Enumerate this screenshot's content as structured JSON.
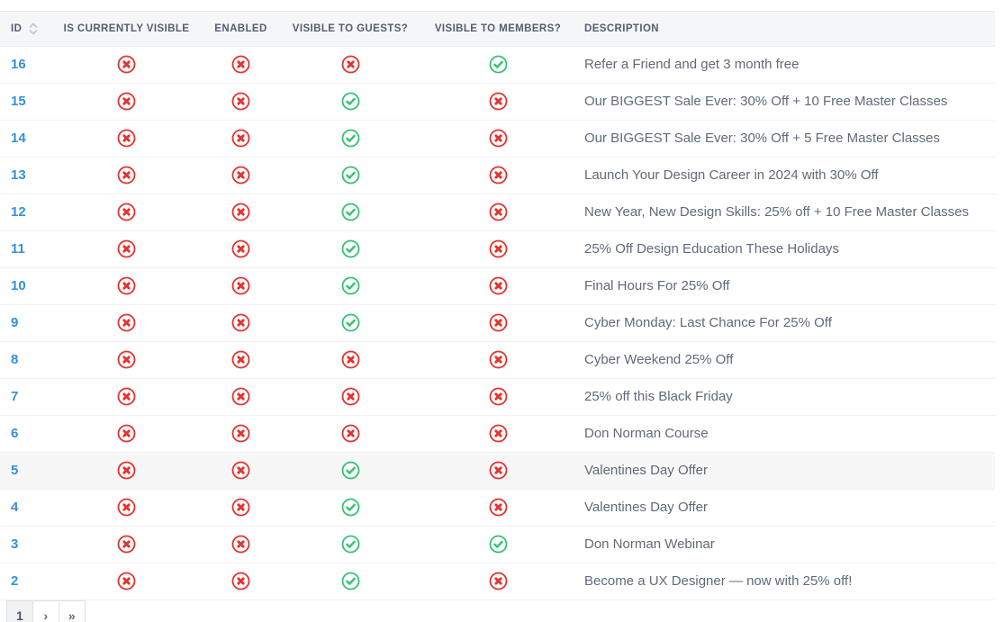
{
  "colors": {
    "red": "#e3342f",
    "green": "#38c172",
    "link_blue": "#3490dc",
    "header_bg": "#f5f6f8",
    "header_text": "#545e70",
    "body_text": "#606a79",
    "row_border": "#eff1f3",
    "highlight_row_bg": "#f7f7f8"
  },
  "table": {
    "columns": [
      {
        "label": "ID",
        "sortable": true
      },
      {
        "label": "IS CURRENTLY VISIBLE"
      },
      {
        "label": "ENABLED"
      },
      {
        "label": "VISIBLE TO GUESTS?"
      },
      {
        "label": "VISIBLE TO MEMBERS?"
      },
      {
        "label": "DESCRIPTION"
      }
    ],
    "status_keys": [
      "is_currently_visible",
      "enabled",
      "visible_to_guests",
      "visible_to_members"
    ],
    "rows": [
      {
        "id": "16",
        "is_currently_visible": false,
        "enabled": false,
        "visible_to_guests": false,
        "visible_to_members": true,
        "description": "Refer a Friend and get 3 month free",
        "highlighted": false
      },
      {
        "id": "15",
        "is_currently_visible": false,
        "enabled": false,
        "visible_to_guests": true,
        "visible_to_members": false,
        "description": "Our BIGGEST Sale Ever: 30% Off + 10 Free Master Classes",
        "highlighted": false
      },
      {
        "id": "14",
        "is_currently_visible": false,
        "enabled": false,
        "visible_to_guests": true,
        "visible_to_members": false,
        "description": "Our BIGGEST Sale Ever: 30% Off + 5 Free Master Classes",
        "highlighted": false
      },
      {
        "id": "13",
        "is_currently_visible": false,
        "enabled": false,
        "visible_to_guests": true,
        "visible_to_members": false,
        "description": "Launch Your Design Career in 2024 with 30% Off",
        "highlighted": false
      },
      {
        "id": "12",
        "is_currently_visible": false,
        "enabled": false,
        "visible_to_guests": true,
        "visible_to_members": false,
        "description": "New Year, New Design Skills: 25% off + 10 Free Master Classes",
        "highlighted": false
      },
      {
        "id": "11",
        "is_currently_visible": false,
        "enabled": false,
        "visible_to_guests": true,
        "visible_to_members": false,
        "description": "25% Off Design Education These Holidays",
        "highlighted": false
      },
      {
        "id": "10",
        "is_currently_visible": false,
        "enabled": false,
        "visible_to_guests": true,
        "visible_to_members": false,
        "description": "Final Hours For 25% Off",
        "highlighted": false
      },
      {
        "id": "9",
        "is_currently_visible": false,
        "enabled": false,
        "visible_to_guests": true,
        "visible_to_members": false,
        "description": "Cyber Monday: Last Chance For 25% Off",
        "highlighted": false
      },
      {
        "id": "8",
        "is_currently_visible": false,
        "enabled": false,
        "visible_to_guests": false,
        "visible_to_members": false,
        "description": "Cyber Weekend 25% Off",
        "highlighted": false
      },
      {
        "id": "7",
        "is_currently_visible": false,
        "enabled": false,
        "visible_to_guests": false,
        "visible_to_members": false,
        "description": "25% off this Black Friday",
        "highlighted": false
      },
      {
        "id": "6",
        "is_currently_visible": false,
        "enabled": false,
        "visible_to_guests": false,
        "visible_to_members": false,
        "description": "Don Norman Course",
        "highlighted": false
      },
      {
        "id": "5",
        "is_currently_visible": false,
        "enabled": false,
        "visible_to_guests": true,
        "visible_to_members": false,
        "description": "Valentines Day Offer",
        "highlighted": true
      },
      {
        "id": "4",
        "is_currently_visible": false,
        "enabled": false,
        "visible_to_guests": true,
        "visible_to_members": false,
        "description": "Valentines Day Offer",
        "highlighted": false
      },
      {
        "id": "3",
        "is_currently_visible": false,
        "enabled": false,
        "visible_to_guests": true,
        "visible_to_members": true,
        "description": "Don Norman Webinar",
        "highlighted": false
      },
      {
        "id": "2",
        "is_currently_visible": false,
        "enabled": false,
        "visible_to_guests": true,
        "visible_to_members": false,
        "description": "Become a UX Designer — now with 25% off!",
        "highlighted": false
      }
    ]
  },
  "pagination": {
    "items": [
      {
        "label": "1",
        "active": true
      },
      {
        "label": "›",
        "active": false
      },
      {
        "label": "»",
        "active": false
      }
    ]
  }
}
